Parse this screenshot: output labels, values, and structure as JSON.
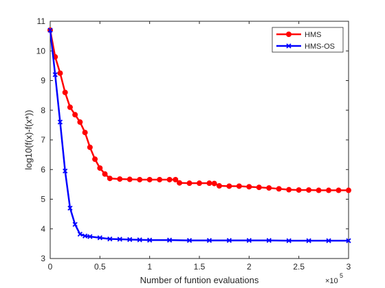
{
  "chart_data": {
    "type": "line",
    "xlabel": "Number of funtion evaluations",
    "ylabel": "log10(f(x)-f(x*))",
    "x_exponent_label": "×10",
    "x_exponent_power": "5",
    "xlim": [
      0,
      3
    ],
    "ylim": [
      3,
      11
    ],
    "x_ticks": [
      "0",
      "0.5",
      "1",
      "1.5",
      "2",
      "2.5",
      "3"
    ],
    "x_tick_values": [
      0,
      0.5,
      1,
      1.5,
      2,
      2.5,
      3
    ],
    "y_ticks": [
      "3",
      "4",
      "5",
      "6",
      "7",
      "8",
      "9",
      "10",
      "11"
    ],
    "y_tick_values": [
      3,
      4,
      5,
      6,
      7,
      8,
      9,
      10,
      11
    ],
    "legend_position": "top-right",
    "grid": false,
    "series": [
      {
        "name": "HMS",
        "color": "#ff0000",
        "marker": "circle",
        "x": [
          0,
          0.05,
          0.1,
          0.15,
          0.2,
          0.25,
          0.3,
          0.35,
          0.4,
          0.45,
          0.5,
          0.55,
          0.6,
          0.7,
          0.8,
          0.9,
          1.0,
          1.1,
          1.2,
          1.26,
          1.3,
          1.4,
          1.5,
          1.6,
          1.65,
          1.7,
          1.8,
          1.9,
          2.0,
          2.1,
          2.2,
          2.3,
          2.4,
          2.5,
          2.6,
          2.7,
          2.8,
          2.9,
          3.0
        ],
        "y": [
          10.7,
          9.8,
          9.25,
          8.6,
          8.1,
          7.85,
          7.6,
          7.25,
          6.75,
          6.35,
          6.05,
          5.85,
          5.7,
          5.68,
          5.67,
          5.66,
          5.66,
          5.66,
          5.66,
          5.66,
          5.55,
          5.54,
          5.54,
          5.54,
          5.53,
          5.45,
          5.44,
          5.44,
          5.42,
          5.4,
          5.38,
          5.35,
          5.32,
          5.31,
          5.31,
          5.3,
          5.3,
          5.3,
          5.3
        ]
      },
      {
        "name": "HMS-OS",
        "color": "#0000ff",
        "marker": "x",
        "x": [
          0,
          0.05,
          0.1,
          0.15,
          0.2,
          0.25,
          0.3,
          0.35,
          0.4,
          0.5,
          0.6,
          0.7,
          0.8,
          0.9,
          1.0,
          1.2,
          1.4,
          1.6,
          1.8,
          2.0,
          2.2,
          2.4,
          2.6,
          2.8,
          3.0
        ],
        "y": [
          10.7,
          9.2,
          7.6,
          5.95,
          4.7,
          4.15,
          3.82,
          3.76,
          3.74,
          3.7,
          3.66,
          3.65,
          3.64,
          3.63,
          3.62,
          3.62,
          3.61,
          3.61,
          3.61,
          3.61,
          3.61,
          3.6,
          3.6,
          3.6,
          3.6
        ]
      }
    ]
  }
}
